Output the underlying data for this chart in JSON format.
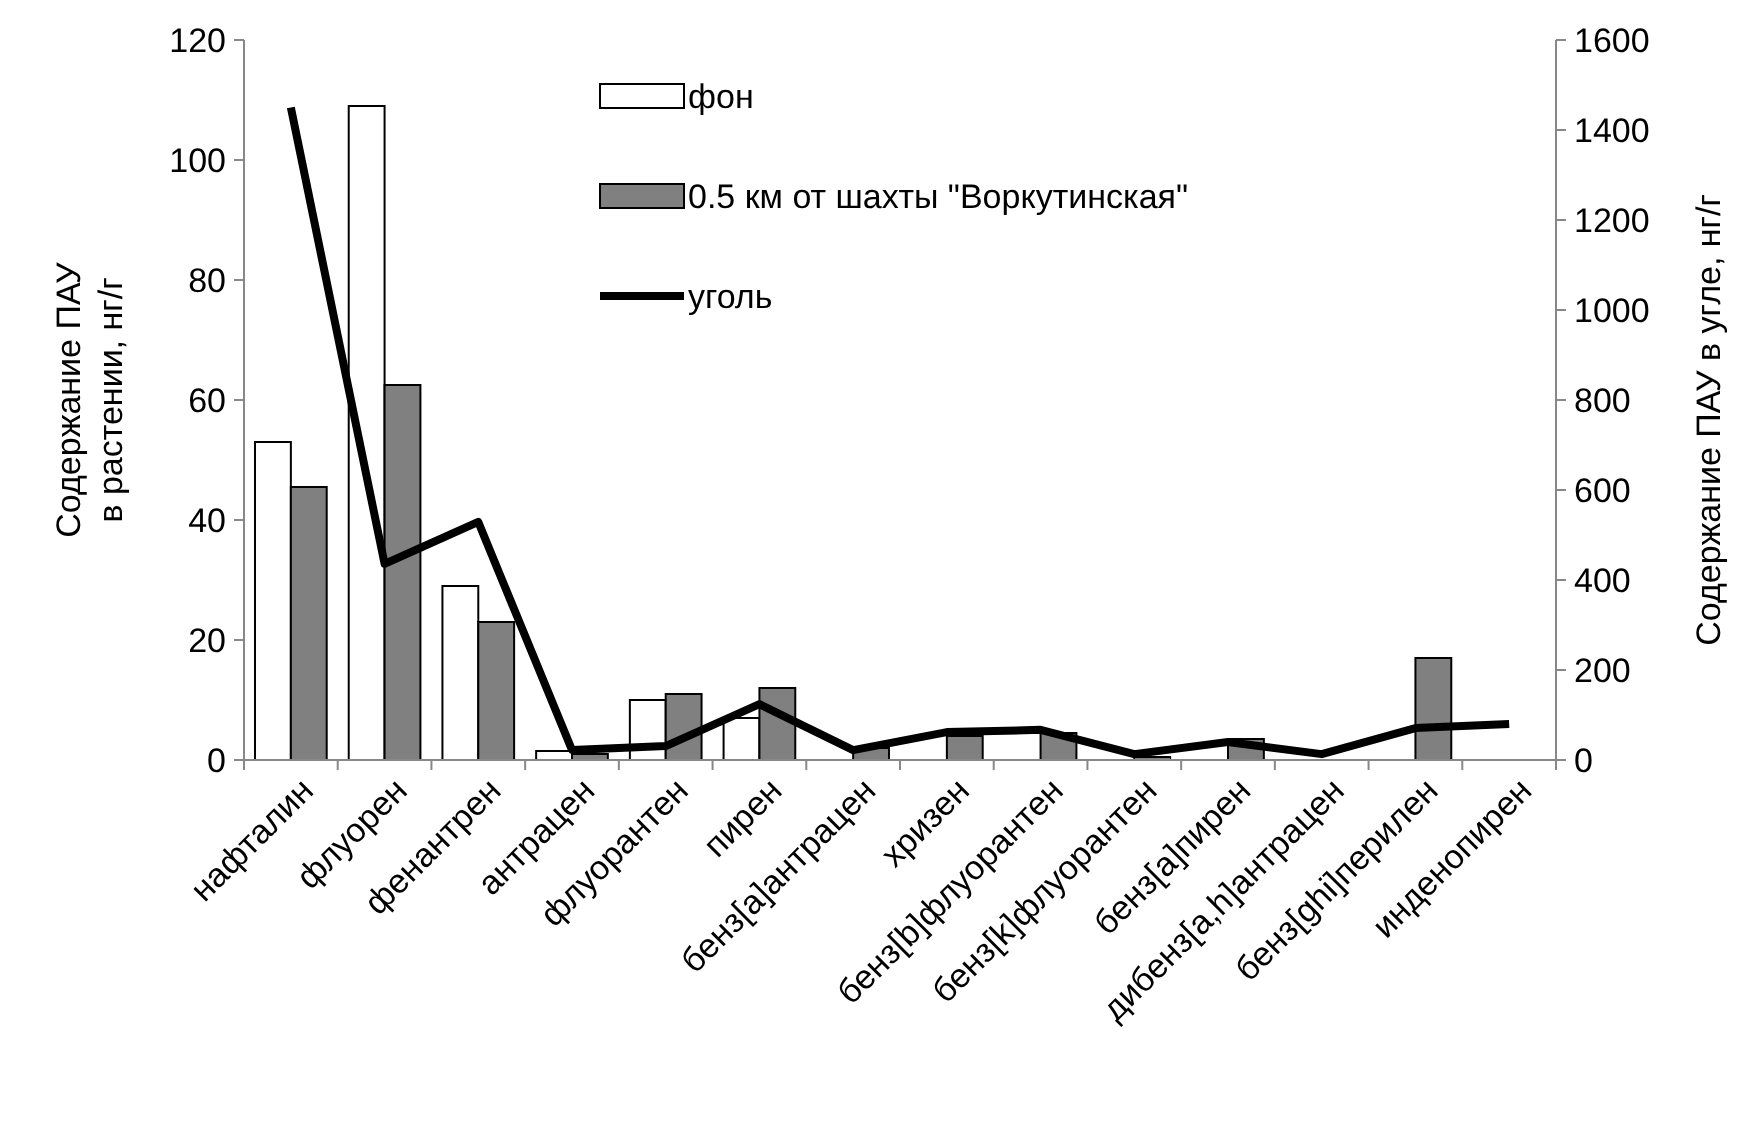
{
  "chart_data": {
    "type": "bar",
    "categories": [
      "нафталин",
      "флуорен",
      "фенантрен",
      "антрацен",
      "флуорантен",
      "пирен",
      "бенз[a]антрацен",
      "хризен",
      "бенз[b]флуорантен",
      "бенз[k]флуорантен",
      "бенз[a]пирен",
      "дибенз[a,h]антрацен",
      "бенз[ghi]перилен",
      "инденопирен"
    ],
    "series": [
      {
        "name": "фон",
        "color": "#ffffff",
        "values": [
          53,
          109,
          29,
          1.5,
          10,
          7,
          null,
          null,
          null,
          null,
          null,
          null,
          null,
          null
        ]
      },
      {
        "name": "0.5 км от шахты \"Воркутинская\"",
        "color": "#808080",
        "values": [
          45.5,
          62.5,
          23,
          1,
          11,
          12,
          2,
          4,
          4.5,
          0.5,
          3.5,
          null,
          17,
          null
        ]
      },
      {
        "name": "уголь",
        "type": "line",
        "axis": "y2",
        "color": "#000000",
        "values": [
          1450,
          436,
          529,
          22,
          31,
          124,
          22,
          62,
          67,
          13,
          40,
          13,
          71,
          80
        ]
      }
    ],
    "ylabel": "Содержание ПАУ\nв растении, нг/г",
    "y2label": "Содержание ПАУ в угле, нг/г",
    "ylim": [
      0,
      120
    ],
    "yticks": [
      0,
      20,
      40,
      60,
      80,
      100,
      120
    ],
    "y2lim": [
      0,
      1600
    ],
    "y2ticks": [
      0,
      200,
      400,
      600,
      800,
      1000,
      1200,
      1400,
      1600
    ],
    "grid": false,
    "legend": "top",
    "marker": "none",
    "line_style": "solid"
  }
}
